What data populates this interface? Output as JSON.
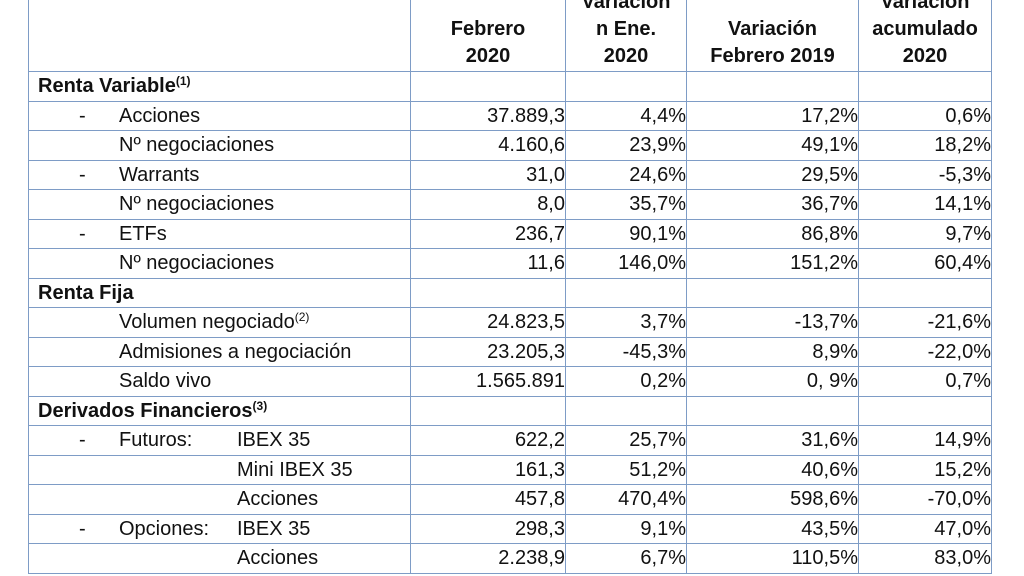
{
  "header": {
    "col1": [
      "Febrero",
      "2020"
    ],
    "col2": [
      "Variación",
      "n Ene.",
      "2020"
    ],
    "col3": [
      "Variación",
      "Febrero 2019"
    ],
    "col4": [
      "Variación",
      "acumulado",
      "2020"
    ]
  },
  "sections": {
    "renta_variable": {
      "title": "Renta Variable",
      "note": "(1)"
    },
    "renta_fija": {
      "title": "Renta Fija"
    },
    "derivados": {
      "title": "Derivados Financieros",
      "note": "(3)"
    }
  },
  "rows": {
    "acciones": {
      "dash": "-",
      "label": "Acciones",
      "v1": "37.889,3",
      "v2": "4,4%",
      "v3": "17,2%",
      "v4": "0,6%"
    },
    "acciones_neg": {
      "label": "Nº negociaciones",
      "v1": "4.160,6",
      "v2": "23,9%",
      "v3": "49,1%",
      "v4": "18,2%"
    },
    "warrants": {
      "dash": "-",
      "label": "Warrants",
      "v1": "31,0",
      "v2": "24,6%",
      "v3": "29,5%",
      "v4": "-5,3%"
    },
    "warrants_neg": {
      "label": "Nº negociaciones",
      "v1": "8,0",
      "v2": "35,7%",
      "v3": "36,7%",
      "v4": "14,1%"
    },
    "etfs": {
      "dash": "-",
      "label": "ETFs",
      "v1": "236,7",
      "v2": "90,1%",
      "v3": "86,8%",
      "v4": "9,7%"
    },
    "etfs_neg": {
      "label": "Nº negociaciones",
      "v1": "11,6",
      "v2": "146,0%",
      "v3": "151,2%",
      "v4": "60,4%"
    },
    "volumen": {
      "label": "Volumen negociado",
      "note": "(2)",
      "v1": "24.823,5",
      "v2": "3,7%",
      "v3": "-13,7%",
      "v4": "-21,6%"
    },
    "admisiones": {
      "label": "Admisiones a negociación",
      "v1": "23.205,3",
      "v2": "-45,3%",
      "v3": "8,9%",
      "v4": "-22,0%"
    },
    "saldo": {
      "label": "Saldo vivo",
      "v1": "1.565.891",
      "v2": "0,2%",
      "v3": "0, 9%",
      "v4": "0,7%"
    },
    "futuros_ibex": {
      "dash": "-",
      "group": "Futuros:",
      "label": "IBEX 35",
      "v1": "622,2",
      "v2": "25,7%",
      "v3": "31,6%",
      "v4": "14,9%"
    },
    "futuros_mini": {
      "label": "Mini IBEX 35",
      "v1": "161,3",
      "v2": "51,2%",
      "v3": "40,6%",
      "v4": "15,2%"
    },
    "futuros_acciones": {
      "label": "Acciones",
      "v1": "457,8",
      "v2": "470,4%",
      "v3": "598,6%",
      "v4": "-70,0%"
    },
    "opciones_ibex": {
      "dash": "-",
      "group": "Opciones:",
      "label": "IBEX 35",
      "v1": "298,3",
      "v2": "9,1%",
      "v3": "43,5%",
      "v4": "47,0%"
    },
    "opciones_acciones": {
      "label": "Acciones",
      "v1": "2.238,9",
      "v2": "6,7%",
      "v3": "110,5%",
      "v4": "83,0%"
    }
  }
}
